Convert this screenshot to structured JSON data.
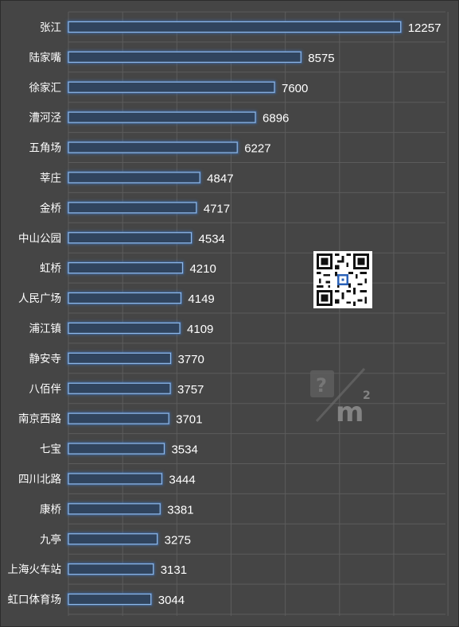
{
  "colors": {
    "background": "#454545",
    "grid": "#5c5c5c",
    "bar_fill": "#30445e",
    "bar_stroke": "#8fb8e8",
    "bar_glow": "#3c78c8",
    "label": "#ffffff"
  },
  "icons": {
    "qr": "qr-code-icon",
    "watermark": "sqm-watermark-icon"
  },
  "chart_data": {
    "type": "bar",
    "orientation": "horizontal",
    "categories": [
      "张江",
      "陆家嘴",
      "徐家汇",
      "漕河泾",
      "五角场",
      "莘庄",
      "金桥",
      "中山公园",
      "虹桥",
      "人民广场",
      "浦江镇",
      "静安寺",
      "八佰伴",
      "南京西路",
      "七宝",
      "四川北路",
      "康桥",
      "九亭",
      "上海火车站",
      "虹口体育场"
    ],
    "values": [
      12257,
      8575,
      7600,
      6896,
      6227,
      4847,
      4717,
      4534,
      4210,
      4149,
      4109,
      3770,
      3757,
      3701,
      3534,
      3444,
      3381,
      3275,
      3131,
      3044
    ],
    "xlim": [
      0,
      14000
    ],
    "grid": true,
    "data_labels": true
  }
}
